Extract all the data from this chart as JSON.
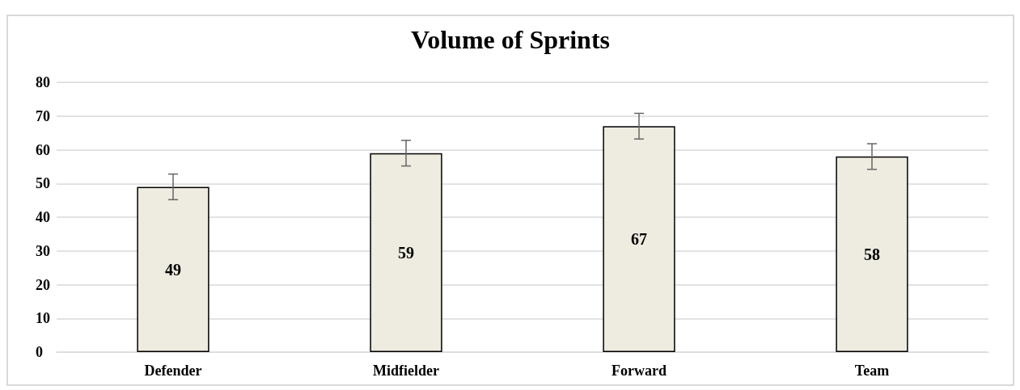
{
  "chart_data": {
    "type": "bar",
    "title": "Volume of Sprints",
    "categories": [
      "Defender",
      "Midfielder",
      "Forward",
      "Team"
    ],
    "values": [
      49,
      59,
      67,
      58
    ],
    "errors": [
      3.8,
      3.8,
      3.8,
      3.8
    ],
    "color": "#eeebe0",
    "ylim": [
      0,
      80
    ],
    "yticks": [
      0,
      10,
      20,
      30,
      40,
      50,
      60,
      70,
      80
    ],
    "grid": "y",
    "data_labels": true
  }
}
